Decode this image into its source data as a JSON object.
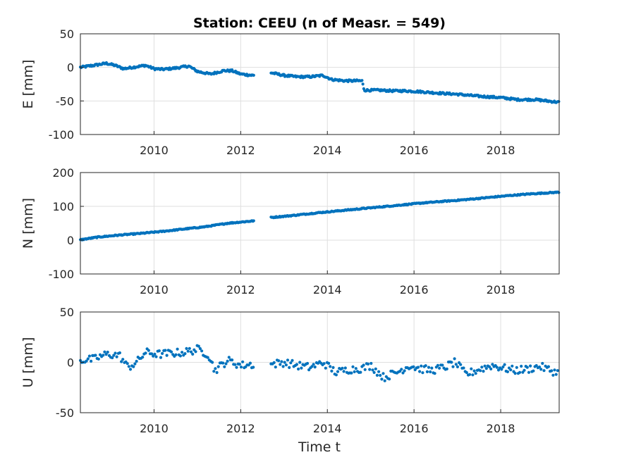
{
  "figure": {
    "title": "Station: CEEU (n of Measr. = 549)",
    "xlabel": "Time t"
  },
  "chart_data": [
    {
      "type": "scatter",
      "panel": "E",
      "ylabel": "E [mm]",
      "xlim": [
        2008.3,
        2019.35
      ],
      "ylim": [
        -100,
        50
      ],
      "xticks": [
        2010,
        2012,
        2014,
        2016,
        2018
      ],
      "yticks": [
        -100,
        -50,
        0,
        50
      ],
      "grid": true,
      "color": "#0072BD",
      "segments": [
        {
          "x": [
            2008.3,
            2008.6,
            2008.9,
            2009.1,
            2009.3,
            2009.5,
            2009.8,
            2010.0,
            2010.2,
            2010.5,
            2010.8,
            2011.0,
            2011.3,
            2011.6,
            2011.8,
            2012.0,
            2012.3
          ],
          "y": [
            0,
            3,
            6,
            3,
            -2,
            0,
            3,
            -2,
            -3,
            -1,
            2,
            -6,
            -10,
            -5,
            -5,
            -10,
            -12
          ]
        },
        {
          "x": [
            2012.7,
            2013.0,
            2013.3,
            2013.6,
            2013.9,
            2014.1,
            2014.4,
            2014.8,
            2014.85,
            2015.2,
            2015.5,
            2015.8,
            2016.1,
            2016.5,
            2017.0,
            2017.5,
            2018.0,
            2018.4,
            2018.8,
            2019.35
          ],
          "y": [
            -8,
            -12,
            -14,
            -14,
            -12,
            -18,
            -20,
            -20,
            -34,
            -34,
            -35,
            -35,
            -36,
            -38,
            -40,
            -43,
            -45,
            -48,
            -48,
            -52
          ]
        }
      ]
    },
    {
      "type": "scatter",
      "panel": "N",
      "ylabel": "N [mm]",
      "xlim": [
        2008.3,
        2019.35
      ],
      "ylim": [
        -100,
        200
      ],
      "xticks": [
        2010,
        2012,
        2014,
        2016,
        2018
      ],
      "yticks": [
        -100,
        0,
        100,
        200
      ],
      "grid": true,
      "color": "#0072BD",
      "segments": [
        {
          "x": [
            2008.3,
            2008.7,
            2009.2,
            2009.7,
            2010.2,
            2010.7,
            2011.2,
            2011.7,
            2012.3
          ],
          "y": [
            1,
            9,
            15,
            20,
            26,
            33,
            40,
            50,
            57
          ]
        },
        {
          "x": [
            2012.7,
            2013.2,
            2013.7,
            2014.2,
            2014.7,
            2015.2,
            2015.7,
            2016.2,
            2016.7,
            2017.2,
            2017.7,
            2018.2,
            2018.7,
            2019.35
          ],
          "y": [
            67,
            73,
            80,
            86,
            92,
            98,
            104,
            110,
            115,
            120,
            126,
            132,
            137,
            142
          ]
        }
      ]
    },
    {
      "type": "scatter",
      "panel": "U",
      "ylabel": "U [mm]",
      "xlim": [
        2008.3,
        2019.35
      ],
      "ylim": [
        -50,
        50
      ],
      "xticks": [
        2010,
        2012,
        2014,
        2016,
        2018
      ],
      "yticks": [
        -50,
        0,
        50
      ],
      "grid": true,
      "color": "#0072BD",
      "segments": [
        {
          "x": [
            2008.3,
            2008.6,
            2008.9,
            2009.2,
            2009.4,
            2009.6,
            2009.8,
            2010.1,
            2010.4,
            2010.7,
            2011.0,
            2011.25,
            2011.4,
            2011.7,
            2012.0,
            2012.3
          ],
          "y": [
            2,
            3,
            8,
            7,
            -5,
            0,
            10,
            8,
            9,
            10,
            13,
            8,
            -8,
            2,
            -3,
            -2
          ]
        },
        {
          "x": [
            2012.7,
            2013.0,
            2013.3,
            2013.6,
            2013.9,
            2014.2,
            2014.5,
            2014.8,
            2015.0,
            2015.3,
            2015.6,
            2015.9,
            2016.1,
            2016.4,
            2016.7,
            2016.95,
            2017.2,
            2017.5,
            2017.8,
            2018.0,
            2018.3,
            2018.6,
            2018.9,
            2019.35
          ],
          "y": [
            -2,
            0,
            -3,
            -5,
            0,
            -10,
            -7,
            -6,
            -3,
            -15,
            -10,
            -3,
            -6,
            -8,
            -5,
            0,
            -12,
            -7,
            -3,
            -5,
            -8,
            -7,
            -4,
            -11
          ]
        }
      ]
    }
  ]
}
